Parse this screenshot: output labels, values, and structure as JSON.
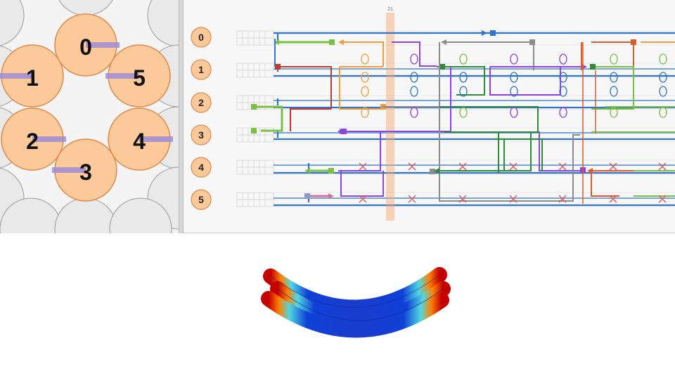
{
  "slice_view": {
    "helices": [
      {
        "label": "0"
      },
      {
        "label": "1"
      },
      {
        "label": "5"
      },
      {
        "label": "2"
      },
      {
        "label": "4"
      },
      {
        "label": "3"
      }
    ]
  },
  "path_view": {
    "helix_badges": [
      "0",
      "1",
      "2",
      "3",
      "4",
      "5"
    ],
    "slider_label": "21"
  },
  "colors": {
    "helix_fill": "#fbc99a",
    "helix_stroke": "#e08a4a",
    "helix_line": "#2f75c9",
    "slider": "#f4a76b",
    "scaffold_red": "#c0392b",
    "strand_orange": "#f39c3d",
    "strand_green": "#7ac143",
    "strand_purple": "#8e44e0",
    "strand_gray": "#8c8c8c"
  },
  "view_3d": {
    "description": "curved 3-helix bundle rendering with heatmap coloring"
  }
}
